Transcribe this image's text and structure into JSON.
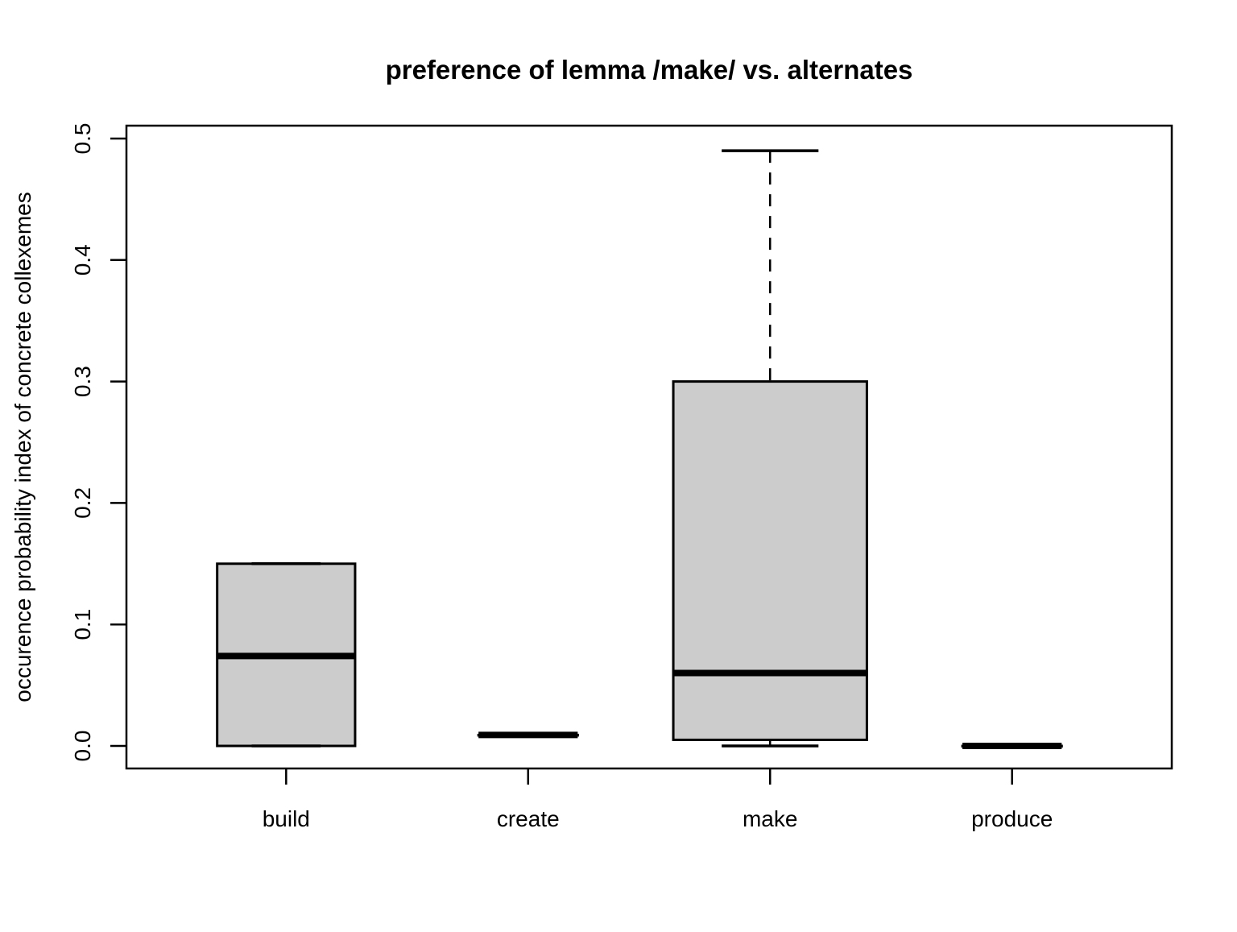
{
  "chart_data": {
    "type": "boxplot",
    "title": "preference of lemma /make/ vs. alternates",
    "xlabel": "",
    "ylabel": "occurence probability index of concrete collexemes",
    "categories": [
      "build",
      "create",
      "make",
      "produce"
    ],
    "series": [
      {
        "name": "build",
        "min": 0.0,
        "q1": 0.0,
        "median": 0.074,
        "q3": 0.15,
        "max": 0.15
      },
      {
        "name": "create",
        "min": 0.009,
        "q1": 0.009,
        "median": 0.009,
        "q3": 0.009,
        "max": 0.009
      },
      {
        "name": "make",
        "min": 0.0,
        "q1": 0.005,
        "median": 0.06,
        "q3": 0.3,
        "max": 0.49
      },
      {
        "name": "produce",
        "min": 0.0,
        "q1": 0.0,
        "median": 0.0,
        "q3": 0.0,
        "max": 0.0
      }
    ],
    "box_widths_units": [
      0.57,
      0.41,
      0.8,
      0.41
    ],
    "xlim": [
      0.34,
      4.66
    ],
    "ylim": [
      0.0,
      0.5
    ],
    "yticks": [
      0.0,
      0.1,
      0.2,
      0.3,
      0.4,
      0.5
    ],
    "ytick_labels": [
      "0.0",
      "0.1",
      "0.2",
      "0.3",
      "0.4",
      "0.5"
    ],
    "grid": false,
    "whisker_style": "dashed",
    "staple_frac_of_box": 0.5,
    "box_fill": "#cccccc",
    "stroke_color": "#000000",
    "background": "#ffffff"
  }
}
